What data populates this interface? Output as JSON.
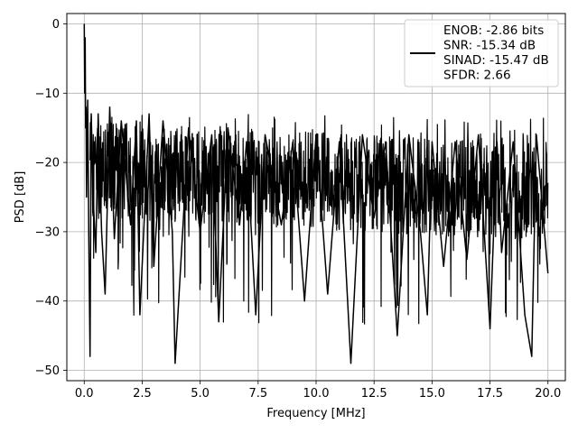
{
  "chart_data": {
    "type": "line",
    "title": "",
    "xlabel": "Frequency [MHz]",
    "ylabel": "PSD [dB]",
    "xlim": [
      -0.75,
      20.75
    ],
    "ylim": [
      -51.5,
      1.5
    ],
    "x_ticks": [
      0.0,
      2.5,
      5.0,
      7.5,
      10.0,
      12.5,
      15.0,
      17.5,
      20.0
    ],
    "x_tick_labels": [
      "0.0",
      "2.5",
      "5.0",
      "7.5",
      "10.0",
      "12.5",
      "15.0",
      "17.5",
      "20.0"
    ],
    "y_ticks": [
      0,
      -10,
      -20,
      -30,
      -40,
      -50
    ],
    "y_tick_labels": [
      "0",
      "−10",
      "−20",
      "−30",
      "−40",
      "−50"
    ],
    "grid": true,
    "legend_position": "top-right",
    "series": [
      {
        "color": "#000000",
        "x": [
          0.0,
          0.02,
          0.04,
          0.06,
          0.08,
          0.1,
          0.15,
          0.2,
          0.25,
          0.3,
          0.4,
          0.5,
          0.6,
          0.75,
          0.9,
          1.1,
          1.3,
          1.6,
          2.0,
          2.25,
          2.4,
          2.8,
          3.0,
          3.4,
          3.8,
          3.92,
          4.5,
          5.0,
          5.5,
          5.8,
          6.2,
          6.7,
          7.0,
          7.4,
          7.8,
          8.5,
          9.0,
          9.5,
          10.0,
          10.5,
          11.0,
          11.5,
          12.0,
          12.5,
          13.0,
          13.5,
          14.0,
          14.5,
          14.8,
          15.0,
          15.5,
          16.0,
          16.5,
          17.0,
          17.5,
          17.8,
          18.0,
          18.5,
          19.0,
          19.3,
          19.5,
          20.0
        ],
        "y": [
          0,
          -10,
          -2,
          -15,
          -12,
          -25,
          -11,
          -32,
          -48,
          -13,
          -26,
          -33,
          -13,
          -30,
          -39,
          -12,
          -31,
          -14,
          -29,
          -14,
          -42,
          -13,
          -35,
          -14,
          -30,
          -49,
          -15,
          -30,
          -16,
          -43,
          -15,
          -29,
          -17,
          -42,
          -16,
          -29,
          -17,
          -40,
          -16,
          -39,
          -17,
          -49,
          -16,
          -28,
          -17,
          -45,
          -16,
          -30,
          -42,
          -17,
          -35,
          -17,
          -34,
          -16,
          -44,
          -17,
          -33,
          -17,
          -42,
          -48,
          -16,
          -36
        ]
      }
    ]
  },
  "legend": {
    "lines": [
      "ENOB: -2.86 bits",
      "SNR: -15.34 dB",
      "SINAD: -15.47 dB",
      "SFDR: 2.66"
    ],
    "swatch_color": "#000000",
    "icon": "line-swatch-icon"
  }
}
